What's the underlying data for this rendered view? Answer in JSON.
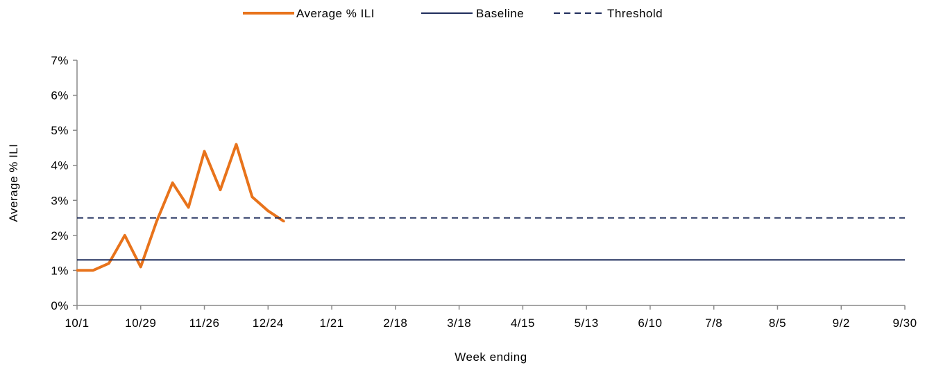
{
  "chart_data": {
    "type": "line",
    "title": "",
    "xlabel": "Week ending",
    "ylabel": "Average % ILI",
    "x_tick_labels": [
      "10/1",
      "10/29",
      "11/26",
      "12/24",
      "1/21",
      "2/18",
      "3/18",
      "4/15",
      "5/13",
      "6/10",
      "7/8",
      "8/5",
      "9/2",
      "9/30"
    ],
    "y_tick_labels": [
      "0%",
      "1%",
      "2%",
      "3%",
      "4%",
      "5%",
      "6%",
      "7%"
    ],
    "ylim": [
      0,
      7
    ],
    "x_domain_weeks": [
      0,
      52
    ],
    "grid": false,
    "legend_position": "top",
    "series": [
      {
        "name": "Average % ILI",
        "style": "solid-thick",
        "color": "#E8731B",
        "x_week_index": [
          0,
          1,
          2,
          3,
          4,
          5,
          6,
          7,
          8,
          9,
          10,
          11,
          12,
          13
        ],
        "values": [
          1.0,
          1.0,
          1.2,
          2.0,
          1.1,
          2.4,
          3.5,
          2.8,
          4.4,
          3.3,
          4.6,
          3.1,
          2.7,
          2.4
        ]
      },
      {
        "name": "Baseline",
        "style": "solid",
        "color": "#1F2D5C",
        "constant_value": 1.3
      },
      {
        "name": "Threshold",
        "style": "dashed",
        "color": "#1F2D5C",
        "constant_value": 2.5
      }
    ]
  }
}
